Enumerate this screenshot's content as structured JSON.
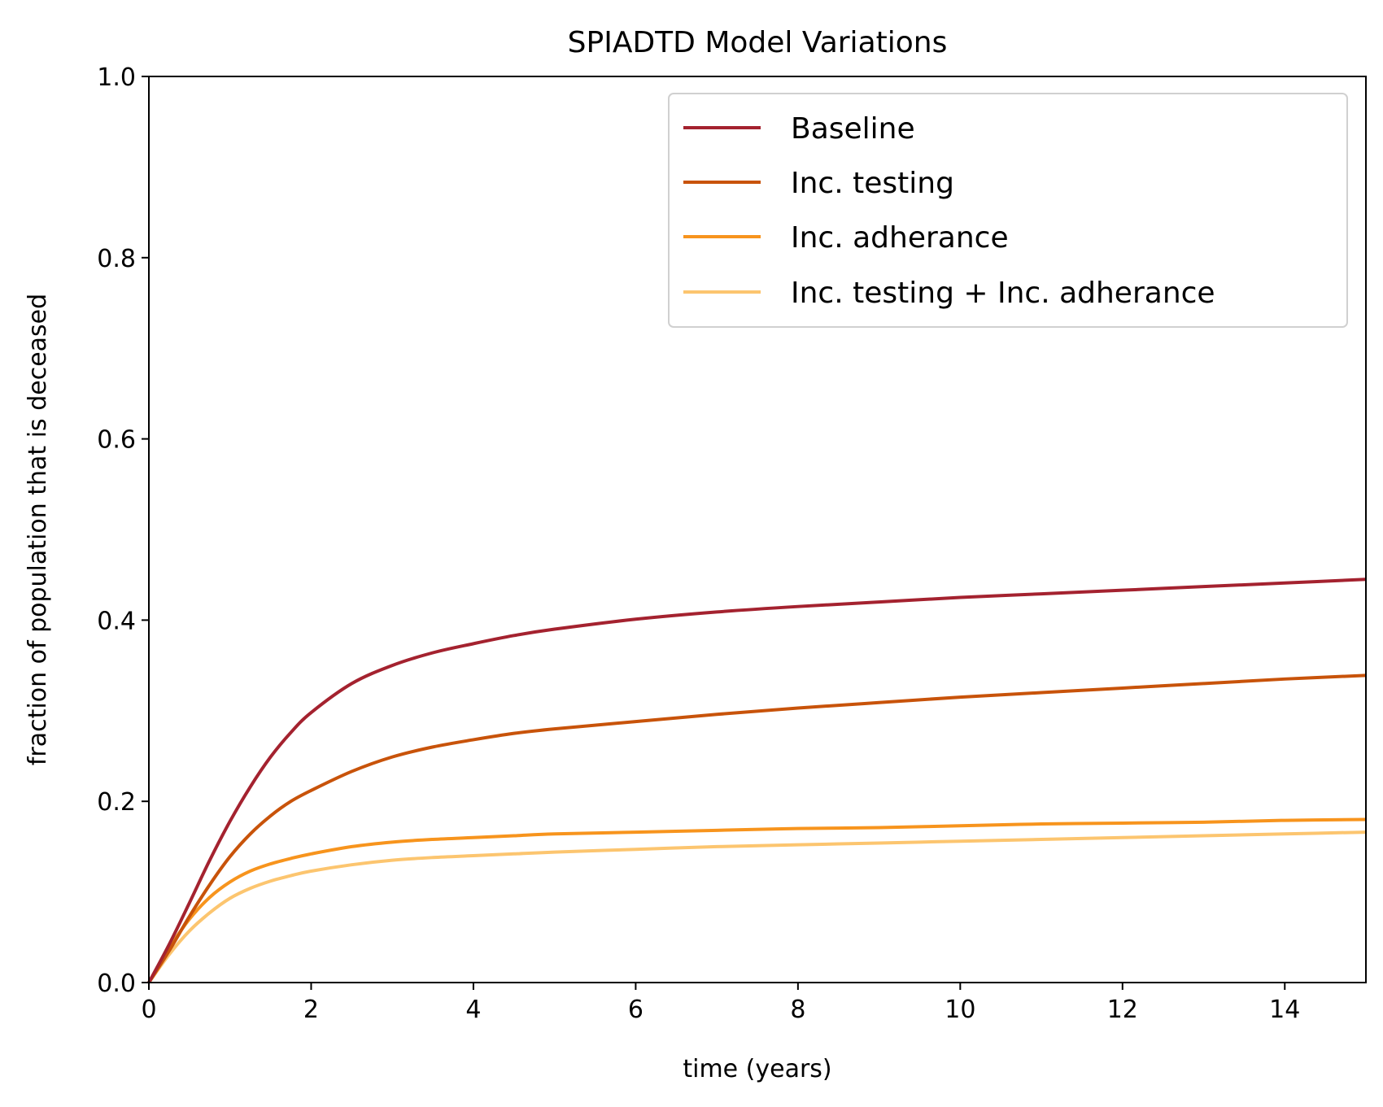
{
  "chart_data": {
    "type": "line",
    "title": "SPIADTD Model Variations",
    "xlabel": "time (years)",
    "ylabel": "fraction of population that is deceased",
    "xlim": [
      0,
      15
    ],
    "ylim": [
      0,
      1.0
    ],
    "xticks": [
      0,
      2,
      4,
      6,
      8,
      10,
      12,
      14
    ],
    "xtick_labels": [
      "0",
      "2",
      "4",
      "6",
      "8",
      "10",
      "12",
      "14"
    ],
    "yticks": [
      0.0,
      0.2,
      0.4,
      0.6,
      0.8,
      1.0
    ],
    "ytick_labels": [
      "0.0",
      "0.2",
      "0.4",
      "0.6",
      "0.8",
      "1.0"
    ],
    "grid": false,
    "legend_position": "top-right",
    "x": [
      0,
      0.25,
      0.5,
      0.75,
      1,
      1.25,
      1.5,
      1.75,
      2,
      2.5,
      3,
      3.5,
      4,
      4.5,
      5,
      6,
      7,
      8,
      9,
      10,
      11,
      12,
      13,
      14,
      15
    ],
    "series": [
      {
        "name": "Baseline",
        "color": "#a4222f",
        "values": [
          0,
          0.042,
          0.088,
          0.135,
          0.178,
          0.216,
          0.249,
          0.276,
          0.298,
          0.33,
          0.35,
          0.364,
          0.374,
          0.383,
          0.39,
          0.401,
          0.409,
          0.415,
          0.42,
          0.425,
          0.429,
          0.433,
          0.437,
          0.441,
          0.445
        ]
      },
      {
        "name": "Inc. testing",
        "color": "#c8530a",
        "values": [
          0,
          0.035,
          0.073,
          0.108,
          0.139,
          0.164,
          0.184,
          0.2,
          0.212,
          0.233,
          0.249,
          0.26,
          0.268,
          0.275,
          0.28,
          0.288,
          0.296,
          0.303,
          0.309,
          0.315,
          0.32,
          0.325,
          0.33,
          0.335,
          0.339
        ]
      },
      {
        "name": "Inc. adherance",
        "color": "#f7941d",
        "values": [
          0,
          0.038,
          0.07,
          0.094,
          0.111,
          0.123,
          0.131,
          0.137,
          0.142,
          0.15,
          0.155,
          0.158,
          0.16,
          0.162,
          0.164,
          0.166,
          0.168,
          0.17,
          0.171,
          0.173,
          0.175,
          0.176,
          0.177,
          0.179,
          0.18
        ]
      },
      {
        "name": "Inc. testing + Inc. adherance",
        "color": "#fcc56f",
        "values": [
          0,
          0.031,
          0.057,
          0.077,
          0.093,
          0.104,
          0.112,
          0.118,
          0.123,
          0.13,
          0.135,
          0.138,
          0.14,
          0.142,
          0.144,
          0.147,
          0.15,
          0.152,
          0.154,
          0.156,
          0.158,
          0.16,
          0.162,
          0.164,
          0.166
        ]
      }
    ]
  }
}
